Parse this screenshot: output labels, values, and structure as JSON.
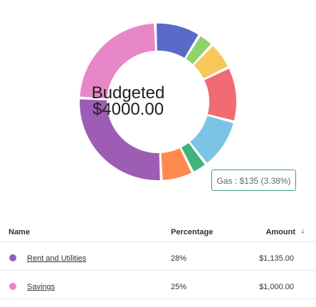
{
  "chart": {
    "center_title": "Budgeted",
    "center_value": "$4000.00",
    "tooltip": "Gas : $135 (3.38%)"
  },
  "chart_data": {
    "type": "pie",
    "slices": [
      {
        "value": 28,
        "color": "#9d5db5"
      },
      {
        "value": 25,
        "color": "#e887c8"
      },
      {
        "value": 10,
        "color": "#5b6ac7"
      },
      {
        "value": 3.38,
        "color": "#8dd46b"
      },
      {
        "value": 6,
        "color": "#f7c75a"
      },
      {
        "value": 12,
        "color": "#f06b72"
      },
      {
        "value": 11,
        "color": "#7cc4e5"
      },
      {
        "value": 3.38,
        "color": "#42b37a"
      },
      {
        "value": 7,
        "color": "#ff8a50"
      }
    ]
  },
  "table": {
    "headers": {
      "name": "Name",
      "percentage": "Percentage",
      "amount": "Amount"
    },
    "rows": [
      {
        "name": "Rent and Utilities",
        "percentage": "28%",
        "amount": "$1,135.00",
        "color": "#9d5db5"
      },
      {
        "name": "Savings",
        "percentage": "25%",
        "amount": "$1,000.00",
        "color": "#e887c8"
      }
    ]
  }
}
